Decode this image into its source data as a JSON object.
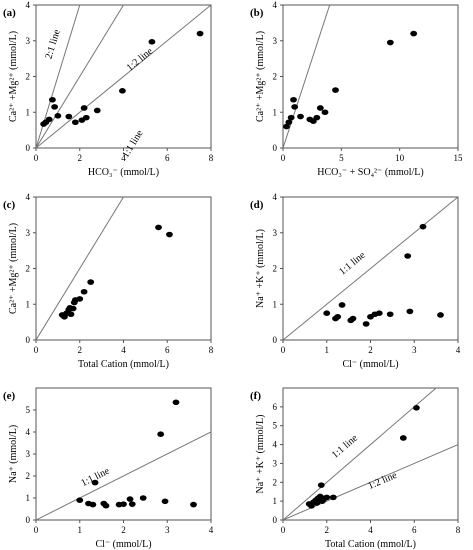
{
  "chart_data": [
    {
      "panel": "(a)",
      "type": "scatter",
      "xlabel": "HCO₃⁻ (mmol/L)",
      "ylabel": "Ca²⁺ +Mg²⁺ (mmol/L)",
      "xlim": [
        0,
        8
      ],
      "ylim": [
        0,
        4
      ],
      "xticks": [
        "0",
        "2",
        "4",
        "6",
        "8"
      ],
      "yticks": [
        "0",
        "1",
        "2",
        "3",
        "4"
      ],
      "reference_lines": [
        {
          "label": "2:1 line",
          "slope": 2
        },
        {
          "label": "1:1 line",
          "slope": 1
        },
        {
          "label": "1:2 line",
          "slope": 0.5
        }
      ],
      "points": [
        [
          0.35,
          0.67
        ],
        [
          0.45,
          0.72
        ],
        [
          0.6,
          0.8
        ],
        [
          0.75,
          1.35
        ],
        [
          0.85,
          1.15
        ],
        [
          1.0,
          0.9
        ],
        [
          1.5,
          0.88
        ],
        [
          1.8,
          0.72
        ],
        [
          2.1,
          0.78
        ],
        [
          2.2,
          1.12
        ],
        [
          2.3,
          0.85
        ],
        [
          2.8,
          1.05
        ],
        [
          3.95,
          1.6
        ],
        [
          5.3,
          2.97
        ],
        [
          7.5,
          3.2
        ]
      ]
    },
    {
      "panel": "(b)",
      "type": "scatter",
      "xlabel": "HCO₃⁻ + SO₄²⁻ (mmol/L)",
      "ylabel": "Ca²⁺ +Mg²⁺ (mmol/L)",
      "xlim": [
        0,
        15
      ],
      "ylim": [
        0,
        4
      ],
      "xticks": [
        "0",
        "5",
        "10",
        "15"
      ],
      "yticks": [
        "0",
        "1",
        "2",
        "3",
        "4"
      ],
      "reference_lines": [
        {
          "label": "1:1 line",
          "slope": 1
        }
      ],
      "points": [
        [
          0.3,
          0.6
        ],
        [
          0.5,
          0.72
        ],
        [
          0.7,
          0.85
        ],
        [
          0.9,
          1.35
        ],
        [
          1.0,
          1.15
        ],
        [
          1.5,
          0.88
        ],
        [
          2.3,
          0.8
        ],
        [
          2.6,
          0.75
        ],
        [
          2.9,
          0.85
        ],
        [
          3.2,
          1.12
        ],
        [
          3.6,
          1.0
        ],
        [
          4.5,
          1.62
        ],
        [
          9.2,
          2.95
        ],
        [
          11.2,
          3.2
        ]
      ]
    },
    {
      "panel": "(c)",
      "type": "scatter",
      "xlabel": "Total Cation (mmol/L)",
      "ylabel": "Ca²⁺ +Mg²⁺ (mmol/L)",
      "xlim": [
        0,
        8
      ],
      "ylim": [
        0,
        4
      ],
      "xticks": [
        "0",
        "2",
        "4",
        "6",
        "8"
      ],
      "yticks": [
        "0",
        "1",
        "2",
        "3",
        "4"
      ],
      "reference_lines": [
        {
          "label": "1:1 line",
          "slope": 1
        }
      ],
      "points": [
        [
          1.2,
          0.7
        ],
        [
          1.3,
          0.65
        ],
        [
          1.4,
          0.75
        ],
        [
          1.5,
          0.85
        ],
        [
          1.55,
          0.9
        ],
        [
          1.6,
          0.72
        ],
        [
          1.7,
          0.88
        ],
        [
          1.75,
          1.05
        ],
        [
          1.8,
          1.12
        ],
        [
          2.0,
          1.15
        ],
        [
          2.2,
          1.35
        ],
        [
          2.5,
          1.62
        ],
        [
          5.6,
          3.15
        ],
        [
          6.1,
          2.95
        ]
      ]
    },
    {
      "panel": "(d)",
      "type": "scatter",
      "xlabel": "Cl⁻ (mmol/L)",
      "ylabel": "Na⁺ +K⁺ (mmol/L)",
      "xlim": [
        0,
        4
      ],
      "ylim": [
        0,
        4
      ],
      "xticks": [
        "0",
        "1",
        "2",
        "3",
        "4"
      ],
      "yticks": [
        "0",
        "1",
        "2",
        "3",
        "4"
      ],
      "reference_lines": [
        {
          "label": "1:1 line",
          "slope": 1
        }
      ],
      "points": [
        [
          1.0,
          0.75
        ],
        [
          1.2,
          0.6
        ],
        [
          1.25,
          0.65
        ],
        [
          1.35,
          0.98
        ],
        [
          1.55,
          0.55
        ],
        [
          1.6,
          0.6
        ],
        [
          1.9,
          0.45
        ],
        [
          2.0,
          0.65
        ],
        [
          2.1,
          0.72
        ],
        [
          2.2,
          0.75
        ],
        [
          2.45,
          0.72
        ],
        [
          2.85,
          2.35
        ],
        [
          2.9,
          0.8
        ],
        [
          3.2,
          3.17
        ],
        [
          3.6,
          0.7
        ]
      ]
    },
    {
      "panel": "(e)",
      "type": "scatter",
      "xlabel": "Cl⁻ (mmol/L)",
      "ylabel": "Na⁺ (mmol/L)",
      "xlim": [
        0,
        4
      ],
      "ylim": [
        0,
        6
      ],
      "xticks": [
        "0",
        "1",
        "2",
        "3",
        "4"
      ],
      "yticks": [
        "0",
        "1",
        "2",
        "3",
        "4",
        "5"
      ],
      "reference_lines": [
        {
          "label": "1:1 line",
          "slope": 1
        }
      ],
      "points": [
        [
          1.0,
          0.9
        ],
        [
          1.2,
          0.75
        ],
        [
          1.3,
          0.7
        ],
        [
          1.35,
          1.7
        ],
        [
          1.55,
          0.75
        ],
        [
          1.6,
          0.65
        ],
        [
          1.9,
          0.7
        ],
        [
          2.0,
          0.72
        ],
        [
          2.15,
          0.95
        ],
        [
          2.2,
          0.72
        ],
        [
          2.45,
          1.0
        ],
        [
          2.85,
          3.9
        ],
        [
          2.95,
          0.85
        ],
        [
          3.2,
          5.35
        ],
        [
          3.6,
          0.7
        ]
      ]
    },
    {
      "panel": "(f)",
      "type": "scatter",
      "xlabel": "Total Cation (mmol/L)",
      "ylabel": "Na⁺ +K⁺ (mmol/L)",
      "xlim": [
        0,
        8
      ],
      "ylim": [
        0,
        7
      ],
      "xticks": [
        "0",
        "2",
        "4",
        "6",
        "8"
      ],
      "yticks": [
        "0",
        "1",
        "2",
        "3",
        "4",
        "5",
        "6"
      ],
      "reference_lines": [
        {
          "label": "1:1 line",
          "slope": 1
        },
        {
          "label": "1:2 line",
          "slope": 0.5
        }
      ],
      "points": [
        [
          1.2,
          0.85
        ],
        [
          1.3,
          0.75
        ],
        [
          1.4,
          0.95
        ],
        [
          1.5,
          1.05
        ],
        [
          1.55,
          0.9
        ],
        [
          1.6,
          1.15
        ],
        [
          1.7,
          1.25
        ],
        [
          1.75,
          1.85
        ],
        [
          1.8,
          1.0
        ],
        [
          1.9,
          1.15
        ],
        [
          2.0,
          1.2
        ],
        [
          2.3,
          1.2
        ],
        [
          5.5,
          4.35
        ],
        [
          6.1,
          5.95
        ]
      ]
    }
  ]
}
